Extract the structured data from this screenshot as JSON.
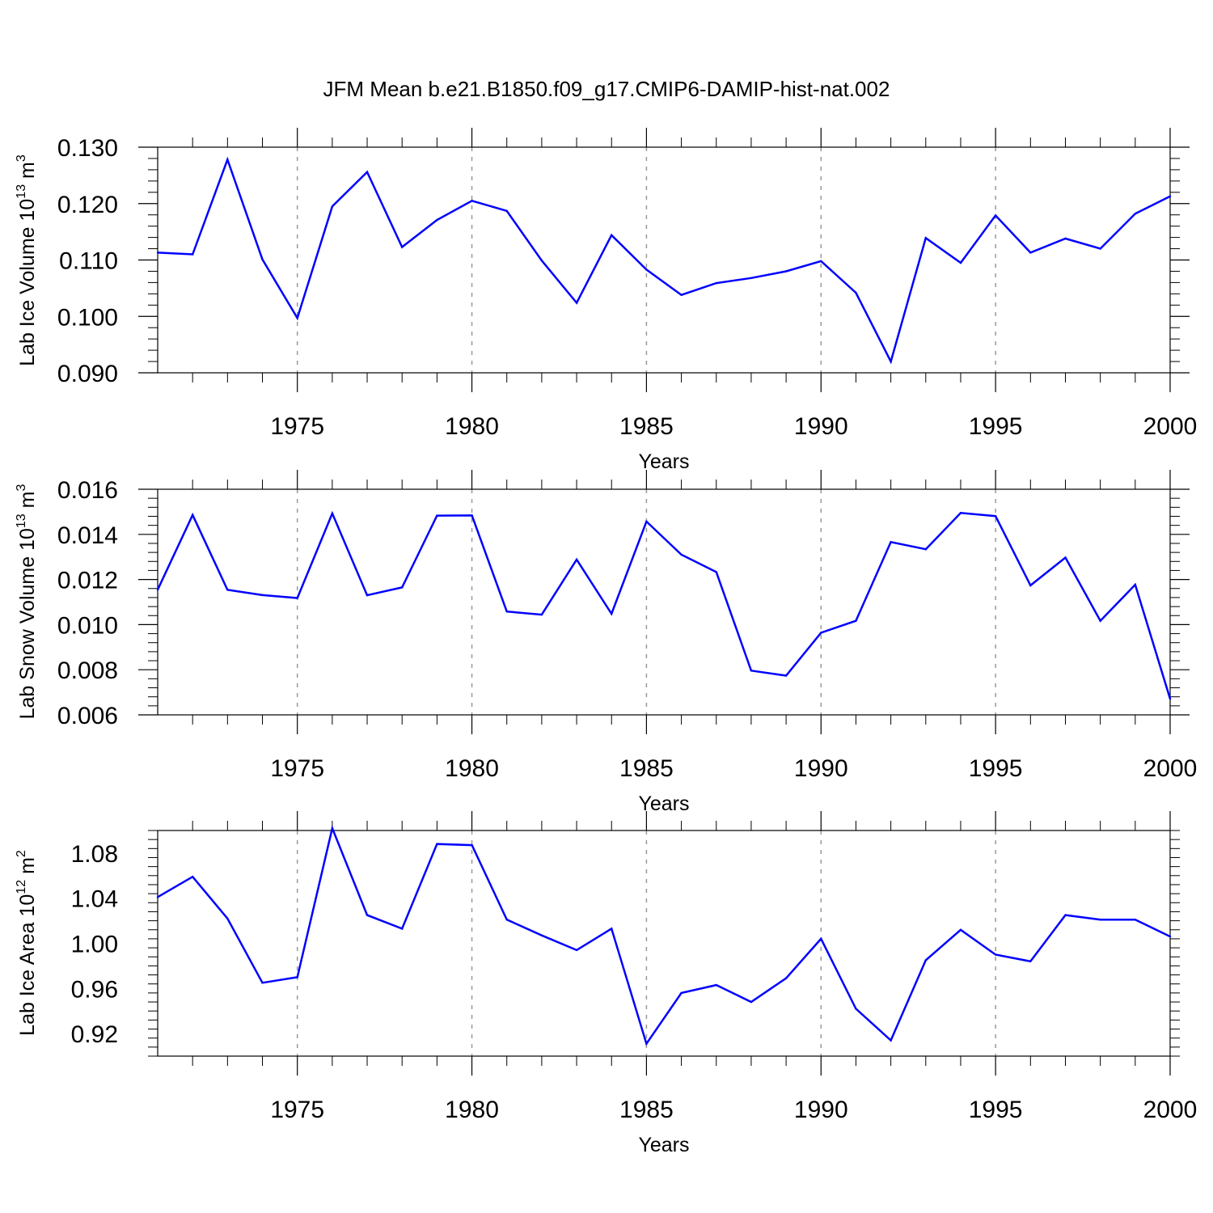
{
  "title": "JFM Mean b.e21.B1850.f09_g17.CMIP6-DAMIP-hist-nat.002",
  "chart_data": [
    {
      "type": "line",
      "ylabel": "Lab Ice Volume 10",
      "ylabel_exp": "13",
      "ylabel_unit": "m",
      "ylabel_unit_exp": "3",
      "xlabel": "Years",
      "xlim": [
        1971,
        2000
      ],
      "ylim": [
        0.09,
        0.13
      ],
      "xticks": [
        "1975",
        "1980",
        "1985",
        "1990",
        "1995",
        "2000"
      ],
      "yticks": [
        "0.090",
        "0.100",
        "0.110",
        "0.120",
        "0.130"
      ],
      "grid": "vertical dashed at major x ticks",
      "color": "#0000ff",
      "x": [
        1971,
        1972,
        1973,
        1974,
        1975,
        1976,
        1977,
        1978,
        1979,
        1980,
        1981,
        1982,
        1983,
        1984,
        1985,
        1986,
        1987,
        1988,
        1989,
        1990,
        1991,
        1992,
        1993,
        1994,
        1995,
        1996,
        1997,
        1998,
        1999,
        2000
      ],
      "values": [
        0.1113,
        0.111,
        0.1278,
        0.1101,
        0.0997,
        0.1195,
        0.1256,
        0.1123,
        0.1171,
        0.1205,
        0.1187,
        0.1099,
        0.1024,
        0.1144,
        0.1083,
        0.1038,
        0.1059,
        0.1068,
        0.108,
        0.1098,
        0.1042,
        0.092,
        0.1139,
        0.1095,
        0.1179,
        0.1113,
        0.1138,
        0.112,
        0.1182,
        0.1213
      ]
    },
    {
      "type": "line",
      "ylabel": "Lab Snow Volume 10",
      "ylabel_exp": "13",
      "ylabel_unit": "m",
      "ylabel_unit_exp": "3",
      "xlabel": "Years",
      "xlim": [
        1971,
        2000
      ],
      "ylim": [
        0.006,
        0.016
      ],
      "xticks": [
        "1975",
        "1980",
        "1985",
        "1990",
        "1995",
        "2000"
      ],
      "yticks": [
        "0.006",
        "0.008",
        "0.010",
        "0.012",
        "0.014",
        "0.016"
      ],
      "grid": "vertical dashed at major x ticks",
      "color": "#0000ff",
      "x": [
        1971,
        1972,
        1973,
        1974,
        1975,
        1976,
        1977,
        1978,
        1979,
        1980,
        1981,
        1982,
        1983,
        1984,
        1985,
        1986,
        1987,
        1988,
        1989,
        1990,
        1991,
        1992,
        1993,
        1994,
        1995,
        1996,
        1997,
        1998,
        1999,
        2000
      ],
      "values": [
        0.01155,
        0.01486,
        0.01154,
        0.01131,
        0.01118,
        0.01493,
        0.0113,
        0.01165,
        0.01483,
        0.01484,
        0.01058,
        0.01044,
        0.01288,
        0.01048,
        0.01457,
        0.0131,
        0.01233,
        0.00796,
        0.00774,
        0.00964,
        0.01017,
        0.01366,
        0.01334,
        0.01495,
        0.01481,
        0.01174,
        0.01297,
        0.01017,
        0.01177,
        0.00671
      ]
    },
    {
      "type": "line",
      "ylabel": "Lab Ice Area 10",
      "ylabel_exp": "12",
      "ylabel_unit": "m",
      "ylabel_unit_exp": "2",
      "xlabel": "Years",
      "xlim": [
        1971,
        2000
      ],
      "ylim": [
        0.9,
        1.1
      ],
      "xticks": [
        "1975",
        "1980",
        "1985",
        "1990",
        "1995",
        "2000"
      ],
      "yticks": [
        "0.92",
        "0.96",
        "1.00",
        "1.04",
        "1.08"
      ],
      "grid": "vertical dashed at major x ticks",
      "color": "#0000ff",
      "x": [
        1971,
        1972,
        1973,
        1974,
        1975,
        1976,
        1977,
        1978,
        1979,
        1980,
        1981,
        1982,
        1983,
        1984,
        1985,
        1986,
        1987,
        1988,
        1989,
        1990,
        1991,
        1992,
        1993,
        1994,
        1995,
        1996,
        1997,
        1998,
        1999,
        2000
      ],
      "values": [
        1.041,
        1.059,
        1.022,
        0.965,
        0.97,
        1.102,
        1.025,
        1.013,
        1.088,
        1.087,
        1.021,
        1.007,
        0.994,
        1.013,
        0.911,
        0.956,
        0.963,
        0.948,
        0.969,
        1.004,
        0.942,
        0.914,
        0.985,
        1.012,
        0.99,
        0.984,
        1.025,
        1.021,
        1.021,
        1.006
      ]
    }
  ]
}
